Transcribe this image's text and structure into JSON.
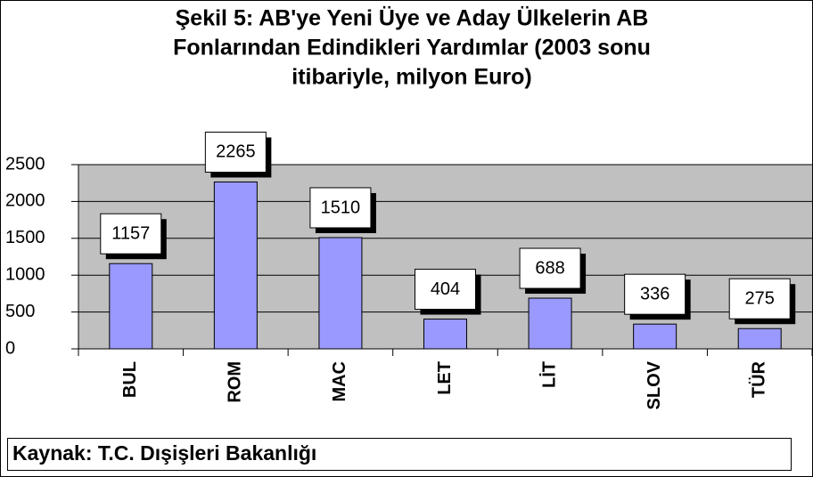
{
  "chart_data": {
    "type": "bar",
    "title": [
      "Şekil 5: AB'ye Yeni Üye ve Aday Ülkelerin AB",
      "Fonlarından Edindikleri Yardımlar (2003 sonu",
      "itibariyle, milyon Euro)"
    ],
    "categories": [
      "BUL",
      "ROM",
      "MAC",
      "LET",
      "LİT",
      "SLOV",
      "TÜR"
    ],
    "values": [
      1157,
      2265,
      1510,
      404,
      688,
      336,
      275
    ],
    "color": "#9999ff",
    "ylim": [
      0,
      2500
    ],
    "yticks": [
      0,
      500,
      1000,
      1500,
      2000,
      2500
    ],
    "grid": true,
    "source": "Kaynak: T.C. Dışişleri Bakanlığı"
  }
}
